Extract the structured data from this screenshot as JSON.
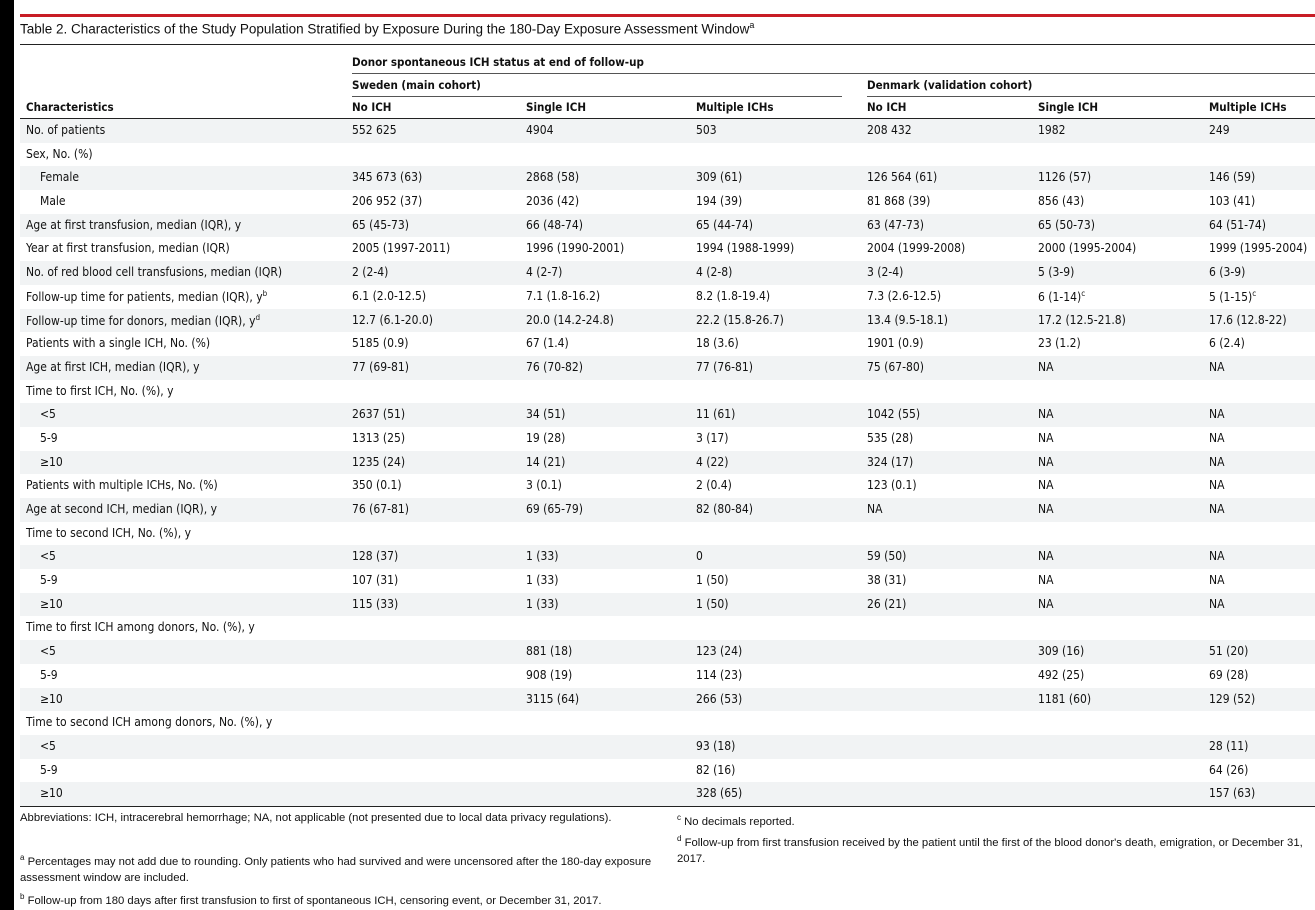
{
  "table": {
    "title": "Table 2. Characteristics of the Study Population Stratified by Exposure During the 180-Day Exposure Assessment Window",
    "title_sup": "a",
    "spanner": "Donor spontaneous ICH status at end of follow-up",
    "group_sweden": "Sweden (main cohort)",
    "group_denmark": "Denmark (validation cohort)",
    "headers": [
      "Characteristics",
      "No ICH",
      "Single ICH",
      "Multiple ICHs",
      "No ICH",
      "Single ICH",
      "Multiple ICHs"
    ],
    "rows": [
      {
        "label": "No. of patients",
        "indent": false,
        "values": [
          "552 625",
          "4904",
          "503",
          "208 432",
          "1982",
          "249"
        ]
      },
      {
        "label": "Sex, No. (%)",
        "indent": false,
        "values": [
          "",
          "",
          "",
          "",
          "",
          ""
        ]
      },
      {
        "label": "Female",
        "indent": true,
        "values": [
          "345 673 (63)",
          "2868 (58)",
          "309 (61)",
          "126 564 (61)",
          "1126 (57)",
          "146 (59)"
        ]
      },
      {
        "label": "Male",
        "indent": true,
        "values": [
          "206 952 (37)",
          "2036 (42)",
          "194 (39)",
          "81 868 (39)",
          "856 (43)",
          "103 (41)"
        ]
      },
      {
        "label": "Age at first transfusion, median (IQR), y",
        "indent": false,
        "values": [
          "65 (45-73)",
          "66 (48-74)",
          "65 (44-74)",
          "63 (47-73)",
          "65 (50-73)",
          "64 (51-74)"
        ]
      },
      {
        "label": "Year at first transfusion, median (IQR)",
        "indent": false,
        "values": [
          "2005 (1997-2011)",
          "1996 (1990-2001)",
          "1994 (1988-1999)",
          "2004 (1999-2008)",
          "2000 (1995-2004)",
          "1999 (1995-2004)"
        ]
      },
      {
        "label": "No. of red blood cell transfusions, median (IQR)",
        "indent": false,
        "values": [
          "2 (2-4)",
          "4 (2-7)",
          "4 (2-8)",
          "3 (2-4)",
          "5 (3-9)",
          "6 (3-9)"
        ]
      },
      {
        "label": "Follow-up time for patients, median (IQR), y",
        "label_sup": "b",
        "indent": false,
        "values": [
          "6.1 (2.0-12.5)",
          "7.1 (1.8-16.2)",
          "8.2 (1.8-19.4)",
          "7.3 (2.6-12.5)",
          "6 (1-14)",
          "5 (1-15)"
        ],
        "value_sups": [
          "",
          "",
          "",
          "",
          "c",
          "c"
        ]
      },
      {
        "label": "Follow-up time for donors, median (IQR), y",
        "label_sup": "d",
        "indent": false,
        "values": [
          "12.7 (6.1-20.0)",
          "20.0 (14.2-24.8)",
          "22.2 (15.8-26.7)",
          "13.4 (9.5-18.1)",
          "17.2 (12.5-21.8)",
          "17.6 (12.8-22)"
        ]
      },
      {
        "label": "Patients with a single ICH, No. (%)",
        "indent": false,
        "values": [
          "5185 (0.9)",
          "67 (1.4)",
          "18 (3.6)",
          "1901 (0.9)",
          "23 (1.2)",
          "6 (2.4)"
        ]
      },
      {
        "label": "Age at first ICH, median (IQR), y",
        "indent": false,
        "values": [
          "77 (69-81)",
          "76 (70-82)",
          "77 (76-81)",
          "75 (67-80)",
          "NA",
          "NA"
        ]
      },
      {
        "label": "Time to first ICH, No. (%), y",
        "indent": false,
        "values": [
          "",
          "",
          "",
          "",
          "",
          ""
        ]
      },
      {
        "label": "<5",
        "indent": true,
        "values": [
          "2637 (51)",
          "34 (51)",
          "11 (61)",
          "1042 (55)",
          "NA",
          "NA"
        ]
      },
      {
        "label": "5-9",
        "indent": true,
        "values": [
          "1313 (25)",
          "19 (28)",
          "3 (17)",
          "535 (28)",
          "NA",
          "NA"
        ]
      },
      {
        "label": "≥10",
        "indent": true,
        "values": [
          "1235 (24)",
          "14 (21)",
          "4 (22)",
          "324 (17)",
          "NA",
          "NA"
        ]
      },
      {
        "label": "Patients with multiple ICHs, No. (%)",
        "indent": false,
        "values": [
          "350 (0.1)",
          "3 (0.1)",
          "2 (0.4)",
          "123 (0.1)",
          "NA",
          "NA"
        ]
      },
      {
        "label": "Age at second ICH, median (IQR), y",
        "indent": false,
        "values": [
          "76 (67-81)",
          "69 (65-79)",
          "82 (80-84)",
          "NA",
          "NA",
          "NA"
        ]
      },
      {
        "label": "Time to second ICH, No. (%), y",
        "indent": false,
        "values": [
          "",
          "",
          "",
          "",
          "",
          ""
        ]
      },
      {
        "label": "<5",
        "indent": true,
        "values": [
          "128 (37)",
          "1 (33)",
          "0",
          "59 (50)",
          "NA",
          "NA"
        ]
      },
      {
        "label": "5-9",
        "indent": true,
        "values": [
          "107 (31)",
          "1 (33)",
          "1 (50)",
          "38 (31)",
          "NA",
          "NA"
        ]
      },
      {
        "label": "≥10",
        "indent": true,
        "values": [
          "115 (33)",
          "1 (33)",
          "1 (50)",
          "26 (21)",
          "NA",
          "NA"
        ]
      },
      {
        "label": "Time to first ICH among donors, No. (%), y",
        "indent": false,
        "values": [
          "",
          "",
          "",
          "",
          "",
          ""
        ]
      },
      {
        "label": "<5",
        "indent": true,
        "values": [
          "",
          "881 (18)",
          "123 (24)",
          "",
          "309 (16)",
          "51 (20)"
        ]
      },
      {
        "label": "5-9",
        "indent": true,
        "values": [
          "",
          "908 (19)",
          "114 (23)",
          "",
          "492 (25)",
          "69 (28)"
        ]
      },
      {
        "label": "≥10",
        "indent": true,
        "values": [
          "",
          "3115 (64)",
          "266 (53)",
          "",
          "1181 (60)",
          "129 (52)"
        ]
      },
      {
        "label": "Time to second ICH among donors, No. (%), y",
        "indent": false,
        "values": [
          "",
          "",
          "",
          "",
          "",
          ""
        ]
      },
      {
        "label": "<5",
        "indent": true,
        "values": [
          "",
          "",
          "93 (18)",
          "",
          "",
          "28 (11)"
        ]
      },
      {
        "label": "5-9",
        "indent": true,
        "values": [
          "",
          "",
          "82 (16)",
          "",
          "",
          "64 (26)"
        ]
      },
      {
        "label": "≥10",
        "indent": true,
        "values": [
          "",
          "",
          "328 (65)",
          "",
          "",
          "157 (63)"
        ]
      }
    ]
  },
  "footnotes": {
    "abbrev": "Abbreviations: ICH, intracerebral hemorrhage; NA, not applicable (not presented due to local data privacy regulations).",
    "a_mark": "a",
    "a": "Percentages may not add due to rounding. Only patients who had survived and were uncensored after the 180-day exposure assessment window are included.",
    "b_mark": "b",
    "b": "Follow-up from 180 days after first transfusion to first of spontaneous ICH, censoring event, or December 31, 2017.",
    "c_mark": "c",
    "c": "No decimals reported.",
    "d_mark": "d",
    "d": "Follow-up from first transfusion received by the patient until the first of the blood donor's death, emigration, or December 31, 2017."
  }
}
